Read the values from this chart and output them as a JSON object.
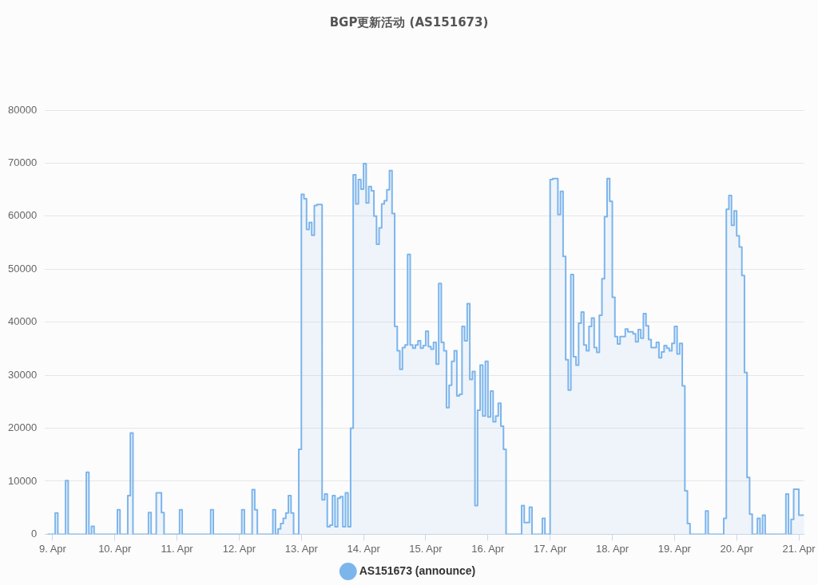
{
  "chart_data": {
    "type": "step",
    "title": "BGP更新活动 (AS151673)",
    "xlim": [
      "--04-08T21:00",
      "--04-21T02:00"
    ],
    "xticks": [
      {
        "value": "--04-09",
        "label": "9. Apr"
      },
      {
        "value": "--04-10",
        "label": "10. Apr"
      },
      {
        "value": "--04-11",
        "label": "11. Apr"
      },
      {
        "value": "--04-12",
        "label": "12. Apr"
      },
      {
        "value": "--04-13",
        "label": "13. Apr"
      },
      {
        "value": "--04-14",
        "label": "14. Apr"
      },
      {
        "value": "--04-15",
        "label": "15. Apr"
      },
      {
        "value": "--04-16",
        "label": "16. Apr"
      },
      {
        "value": "--04-17",
        "label": "17. Apr"
      },
      {
        "value": "--04-18",
        "label": "18. Apr"
      },
      {
        "value": "--04-19",
        "label": "19. Apr"
      },
      {
        "value": "--04-20",
        "label": "20. Apr"
      },
      {
        "value": "--04-21",
        "label": "21. Apr"
      }
    ],
    "ylim": [
      0,
      80000
    ],
    "yticks": [
      0,
      10000,
      20000,
      30000,
      40000,
      50000,
      60000,
      70000,
      80000
    ],
    "grid": "y",
    "legend": "bottom",
    "marker": "none",
    "series": [
      {
        "name": "AS151673 (announce)",
        "color": "#7cb5ec",
        "x": [
          "--04-08T22:00",
          "--04-09T01:00",
          "--04-09T02:00",
          "--04-09T05:00",
          "--04-09T06:00",
          "--04-09T13:00",
          "--04-09T14:00",
          "--04-09T15:00",
          "--04-09T16:00",
          "--04-10T01:00",
          "--04-10T02:00",
          "--04-10T05:00",
          "--04-10T06:00",
          "--04-10T07:00",
          "--04-10T13:00",
          "--04-10T14:00",
          "--04-10T16:00",
          "--04-10T18:00",
          "--04-10T19:00",
          "--04-11T01:00",
          "--04-11T02:00",
          "--04-11T13:00",
          "--04-11T14:00",
          "--04-12T01:00",
          "--04-12T02:00",
          "--04-12T05:00",
          "--04-12T06:00",
          "--04-12T07:00",
          "--04-12T13:00",
          "--04-12T14:00",
          "--04-12T15:00",
          "--04-12T16:00",
          "--04-12T17:00",
          "--04-12T18:00",
          "--04-12T19:00",
          "--04-12T20:00",
          "--04-12T21:00",
          "--04-12T23:00",
          "--04-13T00:00",
          "--04-13T01:00",
          "--04-13T02:00",
          "--04-13T03:00",
          "--04-13T04:00",
          "--04-13T05:00",
          "--04-13T06:00",
          "--04-13T08:00",
          "--04-13T09:00",
          "--04-13T10:00",
          "--04-13T11:00",
          "--04-13T12:00",
          "--04-13T13:00",
          "--04-13T14:00",
          "--04-13T15:00",
          "--04-13T16:00",
          "--04-13T17:00",
          "--04-13T18:00",
          "--04-13T19:00",
          "--04-13T20:00",
          "--04-13T21:00",
          "--04-13T22:00",
          "--04-13T23:00",
          "--04-14T00:00",
          "--04-14T01:00",
          "--04-14T02:00",
          "--04-14T03:00",
          "--04-14T04:00",
          "--04-14T05:00",
          "--04-14T06:00",
          "--04-14T07:00",
          "--04-14T08:00",
          "--04-14T09:00",
          "--04-14T10:00",
          "--04-14T11:00",
          "--04-14T12:00",
          "--04-14T13:00",
          "--04-14T14:00",
          "--04-14T15:00",
          "--04-14T16:00",
          "--04-14T17:00",
          "--04-14T18:00",
          "--04-14T19:00",
          "--04-14T20:00",
          "--04-14T21:00",
          "--04-14T22:00",
          "--04-14T23:00",
          "--04-15T00:00",
          "--04-15T01:00",
          "--04-15T02:00",
          "--04-15T03:00",
          "--04-15T04:00",
          "--04-15T05:00",
          "--04-15T06:00",
          "--04-15T07:00",
          "--04-15T08:00",
          "--04-15T09:00",
          "--04-15T10:00",
          "--04-15T11:00",
          "--04-15T12:00",
          "--04-15T13:00",
          "--04-15T14:00",
          "--04-15T15:00",
          "--04-15T16:00",
          "--04-15T17:00",
          "--04-15T18:00",
          "--04-15T19:00",
          "--04-15T20:00",
          "--04-15T21:00",
          "--04-15T22:00",
          "--04-15T23:00",
          "--04-16T00:00",
          "--04-16T01:00",
          "--04-16T02:00",
          "--04-16T03:00",
          "--04-16T04:00",
          "--04-16T05:00",
          "--04-16T06:00",
          "--04-16T07:00",
          "--04-16T13:00",
          "--04-16T14:00",
          "--04-16T16:00",
          "--04-16T17:00",
          "--04-16T21:00",
          "--04-16T22:00",
          "--04-17T00:00",
          "--04-17T01:00",
          "--04-17T03:00",
          "--04-17T04:00",
          "--04-17T05:00",
          "--04-17T06:00",
          "--04-17T07:00",
          "--04-17T08:00",
          "--04-17T09:00",
          "--04-17T10:00",
          "--04-17T11:00",
          "--04-17T12:00",
          "--04-17T13:00",
          "--04-17T14:00",
          "--04-17T15:00",
          "--04-17T16:00",
          "--04-17T17:00",
          "--04-17T18:00",
          "--04-17T19:00",
          "--04-17T20:00",
          "--04-17T21:00",
          "--04-17T22:00",
          "--04-17T23:00",
          "--04-18T00:00",
          "--04-18T01:00",
          "--04-18T02:00",
          "--04-18T03:00",
          "--04-18T05:00",
          "--04-18T06:00",
          "--04-18T08:00",
          "--04-18T09:00",
          "--04-18T10:00",
          "--04-18T11:00",
          "--04-18T12:00",
          "--04-18T13:00",
          "--04-18T14:00",
          "--04-18T15:00",
          "--04-18T17:00",
          "--04-18T18:00",
          "--04-18T19:00",
          "--04-18T20:00",
          "--04-18T21:00",
          "--04-18T22:00",
          "--04-18T23:00",
          "--04-19T00:00",
          "--04-19T01:00",
          "--04-19T02:00",
          "--04-19T03:00",
          "--04-19T04:00",
          "--04-19T05:00",
          "--04-19T06:00",
          "--04-19T12:00",
          "--04-19T13:00",
          "--04-19T19:00",
          "--04-19T20:00",
          "--04-19T21:00",
          "--04-19T22:00",
          "--04-19T23:00",
          "--04-20T00:00",
          "--04-20T01:00",
          "--04-20T02:00",
          "--04-20T03:00",
          "--04-20T04:00",
          "--04-20T05:00",
          "--04-20T06:00",
          "--04-20T08:00",
          "--04-20T09:00",
          "--04-20T10:00",
          "--04-20T11:00",
          "--04-20T19:00",
          "--04-20T20:00",
          "--04-20T21:00",
          "--04-20T22:00",
          "--04-21T00:00",
          "--04-21T02:00"
        ],
        "values": [
          0,
          4000,
          0,
          10100,
          0,
          11700,
          0,
          1500,
          0,
          4600,
          0,
          7300,
          19100,
          0,
          4100,
          0,
          7800,
          4100,
          0,
          4600,
          0,
          4600,
          0,
          4600,
          0,
          8400,
          4600,
          0,
          4600,
          0,
          1000,
          2000,
          3000,
          4000,
          7300,
          4000,
          0,
          16000,
          64100,
          63300,
          57500,
          58800,
          56400,
          62000,
          62200,
          6500,
          7600,
          1400,
          1700,
          7300,
          1400,
          6800,
          7100,
          1400,
          7800,
          1400,
          20000,
          67800,
          62300,
          66900,
          65100,
          69900,
          62500,
          65600,
          64800,
          60000,
          54700,
          57800,
          62300,
          62900,
          65000,
          68600,
          60500,
          39200,
          34600,
          31100,
          35200,
          35700,
          52800,
          35700,
          35100,
          35700,
          36500,
          35100,
          35600,
          38300,
          35400,
          34900,
          36200,
          32100,
          47300,
          36200,
          34600,
          23900,
          28100,
          32600,
          34600,
          26100,
          26400,
          39200,
          36500,
          43500,
          29200,
          30700,
          5400,
          23400,
          31900,
          22300,
          32600,
          22100,
          27000,
          21200,
          22300,
          24700,
          20400,
          16000,
          0,
          5400,
          2200,
          5100,
          0,
          3000,
          0,
          66900,
          67100,
          60300,
          64700,
          52400,
          32900,
          27200,
          49000,
          33500,
          31900,
          39800,
          41900,
          35700,
          34600,
          39200,
          40800,
          35200,
          34300,
          41300,
          48200,
          59900,
          67100,
          62800,
          44700,
          37300,
          35900,
          37300,
          38700,
          38200,
          37800,
          36300,
          38600,
          37000,
          41600,
          39300,
          36700,
          35200,
          36200,
          33300,
          34400,
          35600,
          35100,
          34600,
          36000,
          39200,
          34000,
          36000,
          28000,
          8200,
          2000,
          0,
          4400,
          0,
          3000,
          61300,
          63900,
          58300,
          61000,
          56300,
          54200,
          48800,
          30500,
          10700,
          3800,
          0,
          3000,
          0,
          3600,
          0,
          7600,
          0,
          2800,
          8500,
          3600,
          3600
        ]
      }
    ]
  }
}
